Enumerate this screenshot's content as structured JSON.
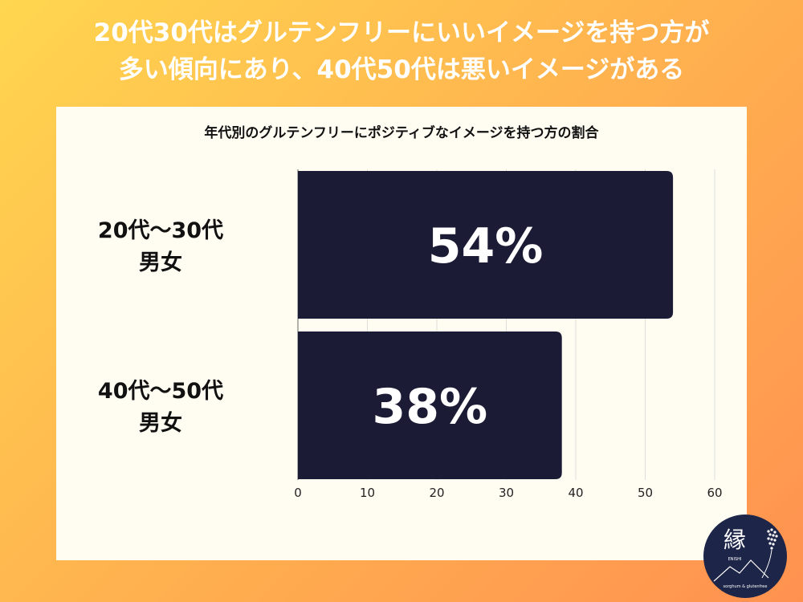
{
  "headline": {
    "line1": "20代30代はグルテンフリーにいいイメージを持つ方が",
    "line2": "多い傾向にあり、40代50代は悪いイメージがある"
  },
  "chart_data": {
    "type": "bar",
    "orientation": "horizontal",
    "title": "年代別のグルテンフリーにポジティブなイメージを持つ方の割合",
    "categories": [
      {
        "line1": "20代〜30代",
        "line2": "男女"
      },
      {
        "line1": "40代〜50代",
        "line2": "男女"
      }
    ],
    "values": [
      54,
      38
    ],
    "data_labels": [
      "54%",
      "38%"
    ],
    "xlim": [
      0,
      60
    ],
    "ticks": [
      0,
      10,
      20,
      30,
      40,
      50,
      60
    ],
    "tick_labels": [
      "0",
      "10",
      "20",
      "30",
      "40",
      "50",
      "60"
    ],
    "grid": true,
    "bar_color": "#1b1b35",
    "label_color": "#ffffff"
  },
  "logo": {
    "glyph": "縁",
    "small_text": "ENISHI",
    "caption": "sorghum & glutenfree",
    "bg_color": "#1d2548"
  },
  "colors": {
    "panel": "#fffdf2",
    "grid": "#dedede",
    "axis": "#666666"
  }
}
